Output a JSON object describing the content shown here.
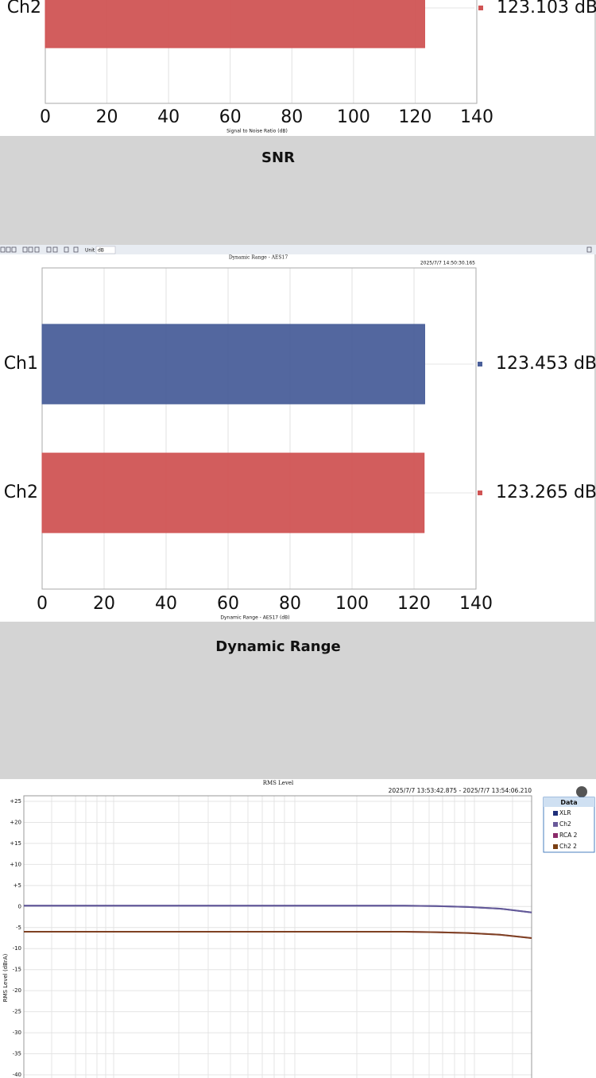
{
  "chart_data": [
    {
      "type": "barh",
      "caption": "SNR",
      "xlabel": "Signal to Noise Ratio (dB)",
      "categories": [
        "Ch2"
      ],
      "values": [
        123.103
      ],
      "value_labels": [
        "123.103 dB"
      ],
      "colors": [
        "#d05454"
      ],
      "xlim": [
        0,
        140
      ],
      "xticks": [
        0,
        20,
        40,
        60,
        80,
        100,
        120,
        140
      ],
      "grid": true
    },
    {
      "type": "barh",
      "caption": "Dynamic Range",
      "title": "Dynamic Range - AES17",
      "timestamp": "2025/7/7 14:50:30.165",
      "toolbar": {
        "unit_label": "Unit",
        "unit": "dB"
      },
      "xlabel": "Dynamic Range - AES17 (dB)",
      "categories": [
        "Ch1",
        "Ch2"
      ],
      "values": [
        123.453,
        123.265
      ],
      "value_labels": [
        "123.453 dB",
        "123.265 dB"
      ],
      "colors": [
        "#4a5f9a",
        "#d05454"
      ],
      "xlim": [
        0,
        140
      ],
      "xticks": [
        0,
        20,
        40,
        60,
        80,
        100,
        120,
        140
      ],
      "grid": true
    },
    {
      "type": "line",
      "title": "RMS Level",
      "timestamp": "2025/7/7 13:53:42.875 -  2025/7/7 13:54:06.210",
      "ylabel": "RMS Level (dBrA)",
      "legend_title": "Data",
      "legend": "right",
      "ylim": [
        -40,
        25
      ],
      "yticks": [
        {
          "value": 25,
          "label": "+25"
        },
        {
          "value": 20,
          "label": "+20"
        },
        {
          "value": 15,
          "label": "+15"
        },
        {
          "value": 10,
          "label": "+10"
        },
        {
          "value": 5,
          "label": "+5"
        },
        0,
        -5,
        -10,
        -15,
        -20,
        -25,
        -30,
        -35,
        -40
      ],
      "grid": true,
      "series": [
        {
          "name": "XLR",
          "color": "#1f2f7a",
          "values": [
            0.2,
            0.2,
            0.2,
            0.2,
            0.2,
            0.2,
            0.2,
            0.2,
            0.2,
            0.2,
            0.2,
            0.2,
            0.2,
            0.1,
            -0.1,
            -0.5,
            -1.4
          ]
        },
        {
          "name": "Ch2",
          "color": "#6a5a9a",
          "values": [
            0.2,
            0.2,
            0.2,
            0.2,
            0.2,
            0.2,
            0.2,
            0.2,
            0.2,
            0.2,
            0.2,
            0.2,
            0.2,
            0.1,
            -0.1,
            -0.5,
            -1.4
          ]
        },
        {
          "name": "RCA 2",
          "color": "#8a2a6a",
          "values": [
            -6.0,
            -6.0,
            -6.0,
            -6.0,
            -6.0,
            -6.0,
            -6.0,
            -6.0,
            -6.0,
            -6.0,
            -6.0,
            -6.0,
            -6.0,
            -6.1,
            -6.3,
            -6.7,
            -7.5
          ]
        },
        {
          "name": "Ch2 2",
          "color": "#7a3f12",
          "values": [
            -6.0,
            -6.0,
            -6.0,
            -6.0,
            -6.0,
            -6.0,
            -6.0,
            -6.0,
            -6.0,
            -6.0,
            -6.0,
            -6.0,
            -6.0,
            -6.1,
            -6.3,
            -6.7,
            -7.5
          ]
        }
      ]
    }
  ]
}
